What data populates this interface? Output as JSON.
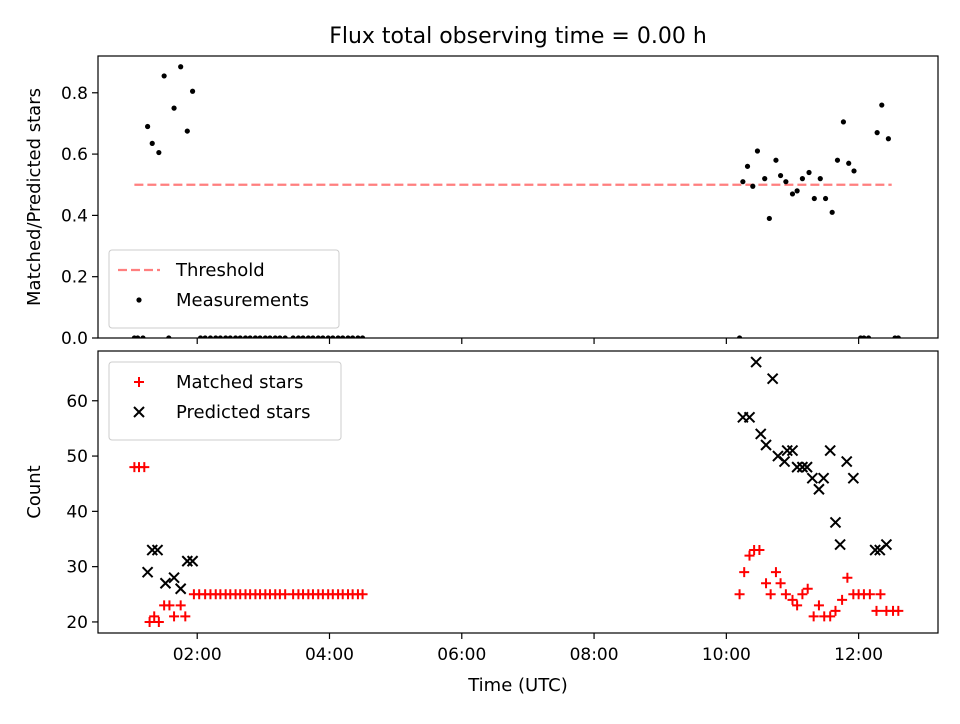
{
  "chart_data": {
    "type": "scatter",
    "title": "Flux total observing time = 0.00 h",
    "xlabel": "Time (UTC)",
    "x_ticks": [
      "02:00",
      "04:00",
      "06:00",
      "08:00",
      "10:00",
      "12:00"
    ],
    "x_tick_values": [
      2,
      4,
      6,
      8,
      10,
      12
    ],
    "xlim": [
      0.5,
      13.2
    ],
    "panels": [
      {
        "id": "ratio",
        "ylabel": "Matched/Predicted stars",
        "ylim": [
          0,
          0.92
        ],
        "y_ticks": [
          0.0,
          0.2,
          0.4,
          0.6,
          0.8
        ],
        "y_tick_labels": [
          "0.0",
          "0.2",
          "0.4",
          "0.6",
          "0.8"
        ],
        "legend_position": "lower left",
        "threshold": {
          "name": "Threshold",
          "value": 0.5,
          "x_range": [
            1.05,
            12.5
          ],
          "color": "#ff7f7f"
        },
        "series": [
          {
            "name": "Measurements",
            "marker": "dot",
            "color": "#000000",
            "points": [
              [
                1.05,
                0
              ],
              [
                1.1,
                0
              ],
              [
                1.18,
                0
              ],
              [
                1.25,
                0.69
              ],
              [
                1.32,
                0.635
              ],
              [
                1.42,
                0.605
              ],
              [
                1.5,
                0.855
              ],
              [
                1.57,
                0
              ],
              [
                1.65,
                0.75
              ],
              [
                1.75,
                0.885
              ],
              [
                1.85,
                0.675
              ],
              [
                1.93,
                0.805
              ],
              [
                2.05,
                0
              ],
              [
                2.12,
                0
              ],
              [
                2.2,
                0
              ],
              [
                2.28,
                0
              ],
              [
                2.35,
                0
              ],
              [
                2.43,
                0
              ],
              [
                2.5,
                0
              ],
              [
                2.58,
                0
              ],
              [
                2.65,
                0
              ],
              [
                2.73,
                0
              ],
              [
                2.8,
                0
              ],
              [
                2.88,
                0
              ],
              [
                2.95,
                0
              ],
              [
                3.03,
                0
              ],
              [
                3.1,
                0
              ],
              [
                3.18,
                0
              ],
              [
                3.25,
                0
              ],
              [
                3.33,
                0
              ],
              [
                3.45,
                0
              ],
              [
                3.53,
                0
              ],
              [
                3.6,
                0
              ],
              [
                3.68,
                0
              ],
              [
                3.75,
                0
              ],
              [
                3.83,
                0
              ],
              [
                3.9,
                0
              ],
              [
                3.98,
                0
              ],
              [
                4.05,
                0
              ],
              [
                4.13,
                0
              ],
              [
                4.2,
                0
              ],
              [
                4.28,
                0
              ],
              [
                4.35,
                0
              ],
              [
                4.43,
                0
              ],
              [
                4.5,
                0
              ],
              [
                10.2,
                0
              ],
              [
                10.25,
                0.51
              ],
              [
                10.32,
                0.56
              ],
              [
                10.4,
                0.495
              ],
              [
                10.47,
                0.61
              ],
              [
                10.58,
                0.52
              ],
              [
                10.65,
                0.39
              ],
              [
                10.75,
                0.58
              ],
              [
                10.82,
                0.53
              ],
              [
                10.9,
                0.51
              ],
              [
                11.0,
                0.47
              ],
              [
                11.07,
                0.48
              ],
              [
                11.15,
                0.52
              ],
              [
                11.25,
                0.54
              ],
              [
                11.33,
                0.455
              ],
              [
                11.42,
                0.52
              ],
              [
                11.5,
                0.455
              ],
              [
                11.6,
                0.41
              ],
              [
                11.68,
                0.58
              ],
              [
                11.77,
                0.705
              ],
              [
                11.85,
                0.57
              ],
              [
                11.93,
                0.545
              ],
              [
                12.03,
                0
              ],
              [
                12.08,
                0
              ],
              [
                12.15,
                0
              ],
              [
                12.28,
                0.67
              ],
              [
                12.35,
                0.76
              ],
              [
                12.45,
                0.65
              ],
              [
                12.55,
                0
              ],
              [
                12.6,
                0
              ]
            ]
          }
        ]
      },
      {
        "id": "counts",
        "ylabel": "Count",
        "ylim": [
          18,
          69
        ],
        "y_ticks": [
          20,
          30,
          40,
          50,
          60
        ],
        "y_tick_labels": [
          "20",
          "30",
          "40",
          "50",
          "60"
        ],
        "legend_position": "upper left",
        "series": [
          {
            "name": "Matched stars",
            "marker": "plus",
            "color": "#ff0000",
            "points": [
              [
                1.05,
                48
              ],
              [
                1.12,
                48
              ],
              [
                1.2,
                48
              ],
              [
                1.28,
                20
              ],
              [
                1.35,
                21
              ],
              [
                1.42,
                20
              ],
              [
                1.5,
                23
              ],
              [
                1.58,
                23
              ],
              [
                1.65,
                21
              ],
              [
                1.75,
                23
              ],
              [
                1.82,
                21
              ],
              [
                1.95,
                25
              ],
              [
                2.03,
                25
              ],
              [
                2.12,
                25
              ],
              [
                2.2,
                25
              ],
              [
                2.28,
                25
              ],
              [
                2.35,
                25
              ],
              [
                2.43,
                25
              ],
              [
                2.5,
                25
              ],
              [
                2.58,
                25
              ],
              [
                2.65,
                25
              ],
              [
                2.73,
                25
              ],
              [
                2.8,
                25
              ],
              [
                2.88,
                25
              ],
              [
                2.95,
                25
              ],
              [
                3.03,
                25
              ],
              [
                3.1,
                25
              ],
              [
                3.18,
                25
              ],
              [
                3.25,
                25
              ],
              [
                3.33,
                25
              ],
              [
                3.45,
                25
              ],
              [
                3.53,
                25
              ],
              [
                3.6,
                25
              ],
              [
                3.68,
                25
              ],
              [
                3.75,
                25
              ],
              [
                3.83,
                25
              ],
              [
                3.9,
                25
              ],
              [
                3.98,
                25
              ],
              [
                4.05,
                25
              ],
              [
                4.13,
                25
              ],
              [
                4.2,
                25
              ],
              [
                4.28,
                25
              ],
              [
                4.35,
                25
              ],
              [
                4.43,
                25
              ],
              [
                4.5,
                25
              ],
              [
                10.2,
                25
              ],
              [
                10.27,
                29
              ],
              [
                10.35,
                32
              ],
              [
                10.42,
                33
              ],
              [
                10.5,
                33
              ],
              [
                10.6,
                27
              ],
              [
                10.67,
                25
              ],
              [
                10.75,
                29
              ],
              [
                10.82,
                27
              ],
              [
                10.9,
                25
              ],
              [
                11.0,
                24
              ],
              [
                11.07,
                23
              ],
              [
                11.15,
                25
              ],
              [
                11.23,
                26
              ],
              [
                11.32,
                21
              ],
              [
                11.4,
                23
              ],
              [
                11.48,
                21
              ],
              [
                11.57,
                21
              ],
              [
                11.65,
                22
              ],
              [
                11.75,
                24
              ],
              [
                11.83,
                28
              ],
              [
                11.92,
                25
              ],
              [
                12.0,
                25
              ],
              [
                12.08,
                25
              ],
              [
                12.17,
                25
              ],
              [
                12.27,
                22
              ],
              [
                12.33,
                25
              ],
              [
                12.42,
                22
              ],
              [
                12.52,
                22
              ],
              [
                12.6,
                22
              ]
            ]
          },
          {
            "name": "Predicted stars",
            "marker": "x",
            "color": "#000000",
            "points": [
              [
                1.25,
                29
              ],
              [
                1.32,
                33
              ],
              [
                1.4,
                33
              ],
              [
                1.52,
                27
              ],
              [
                1.65,
                28
              ],
              [
                1.75,
                26
              ],
              [
                1.85,
                31
              ],
              [
                1.93,
                31
              ],
              [
                10.25,
                57
              ],
              [
                10.35,
                57
              ],
              [
                10.45,
                67
              ],
              [
                10.52,
                54
              ],
              [
                10.6,
                52
              ],
              [
                10.7,
                64
              ],
              [
                10.78,
                50
              ],
              [
                10.88,
                49
              ],
              [
                10.92,
                51
              ],
              [
                11.0,
                51
              ],
              [
                11.07,
                48
              ],
              [
                11.15,
                48
              ],
              [
                11.22,
                48
              ],
              [
                11.3,
                46
              ],
              [
                11.4,
                44
              ],
              [
                11.47,
                46
              ],
              [
                11.57,
                51
              ],
              [
                11.65,
                38
              ],
              [
                11.72,
                34
              ],
              [
                11.82,
                49
              ],
              [
                11.92,
                46
              ],
              [
                12.25,
                33
              ],
              [
                12.32,
                33
              ],
              [
                12.42,
                34
              ]
            ]
          }
        ]
      }
    ]
  }
}
